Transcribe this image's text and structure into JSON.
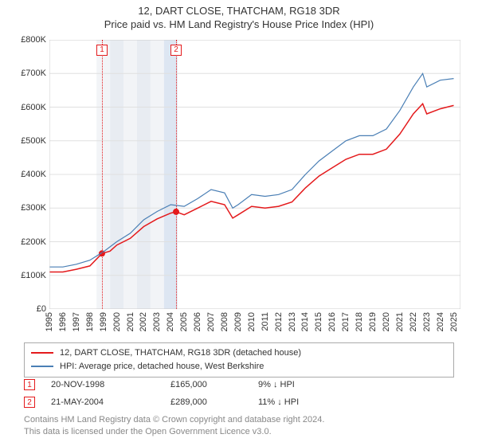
{
  "title": "12, DART CLOSE, THATCHAM, RG18 3DR",
  "subtitle": "Price paid vs. HM Land Registry's House Price Index (HPI)",
  "chart": {
    "type": "line",
    "background_color": "#ffffff",
    "grid_color": "#e0e0e0",
    "border_color": "#cccccc",
    "title_fontsize": 13,
    "label_fontsize": 11,
    "x": {
      "min": 1995,
      "max": 2025.5,
      "ticks": [
        1995,
        1996,
        1997,
        1998,
        1999,
        2000,
        2001,
        2002,
        2003,
        2004,
        2005,
        2006,
        2007,
        2008,
        2009,
        2010,
        2011,
        2012,
        2013,
        2014,
        2015,
        2016,
        2017,
        2018,
        2019,
        2020,
        2021,
        2022,
        2023,
        2024,
        2025
      ],
      "tick_rotation": -90
    },
    "y": {
      "min": 0,
      "max": 800000,
      "ticks": [
        0,
        100000,
        200000,
        300000,
        400000,
        500000,
        600000,
        700000,
        800000
      ],
      "tick_labels": [
        "£0",
        "£100K",
        "£200K",
        "£300K",
        "£400K",
        "£500K",
        "£600K",
        "£700K",
        "£800K"
      ]
    },
    "bands": [
      {
        "from": 1998.5,
        "color": "#f2f4f7"
      },
      {
        "from": 1999.5,
        "color": "#e8ecf2"
      },
      {
        "from": 2000.5,
        "color": "#f2f4f7"
      },
      {
        "from": 2001.5,
        "color": "#e8ecf2"
      },
      {
        "from": 2002.5,
        "color": "#f2f4f7"
      },
      {
        "from": 2003.5,
        "color": "#dde6f2"
      }
    ],
    "vlines": [
      {
        "x": 1998.9,
        "label": "1",
        "color": "#e41a1c"
      },
      {
        "x": 2004.4,
        "label": "2",
        "color": "#e41a1c"
      }
    ],
    "series": [
      {
        "name": "12, DART CLOSE, THATCHAM, RG18 3DR (detached house)",
        "color": "#e41a1c",
        "line_width": 1.5,
        "points": [
          [
            1995,
            110000
          ],
          [
            1996,
            110000
          ],
          [
            1997,
            118000
          ],
          [
            1998,
            128000
          ],
          [
            1998.9,
            165000
          ],
          [
            1999.5,
            172000
          ],
          [
            2000,
            190000
          ],
          [
            2001,
            210000
          ],
          [
            2002,
            245000
          ],
          [
            2003,
            268000
          ],
          [
            2004,
            285000
          ],
          [
            2004.4,
            289000
          ],
          [
            2005,
            280000
          ],
          [
            2006,
            300000
          ],
          [
            2007,
            320000
          ],
          [
            2008,
            310000
          ],
          [
            2008.6,
            270000
          ],
          [
            2009,
            280000
          ],
          [
            2010,
            305000
          ],
          [
            2011,
            300000
          ],
          [
            2012,
            305000
          ],
          [
            2013,
            318000
          ],
          [
            2014,
            360000
          ],
          [
            2015,
            395000
          ],
          [
            2016,
            420000
          ],
          [
            2017,
            445000
          ],
          [
            2018,
            460000
          ],
          [
            2019,
            460000
          ],
          [
            2020,
            475000
          ],
          [
            2021,
            520000
          ],
          [
            2022,
            580000
          ],
          [
            2022.7,
            610000
          ],
          [
            2023,
            580000
          ],
          [
            2024,
            595000
          ],
          [
            2025,
            605000
          ]
        ],
        "markers": [
          {
            "x": 1998.9,
            "y": 165000
          },
          {
            "x": 2004.4,
            "y": 289000
          }
        ],
        "marker_color": "#e41a1c",
        "marker_radius": 4
      },
      {
        "name": "HPI: Average price, detached house, West Berkshire",
        "color": "#4a7fb5",
        "line_width": 1.2,
        "points": [
          [
            1995,
            125000
          ],
          [
            1996,
            125000
          ],
          [
            1997,
            133000
          ],
          [
            1998,
            145000
          ],
          [
            1999,
            170000
          ],
          [
            2000,
            200000
          ],
          [
            2001,
            225000
          ],
          [
            2002,
            265000
          ],
          [
            2003,
            290000
          ],
          [
            2004,
            310000
          ],
          [
            2005,
            305000
          ],
          [
            2006,
            328000
          ],
          [
            2007,
            355000
          ],
          [
            2008,
            345000
          ],
          [
            2008.6,
            300000
          ],
          [
            2009,
            310000
          ],
          [
            2010,
            340000
          ],
          [
            2011,
            335000
          ],
          [
            2012,
            340000
          ],
          [
            2013,
            355000
          ],
          [
            2014,
            400000
          ],
          [
            2015,
            440000
          ],
          [
            2016,
            470000
          ],
          [
            2017,
            500000
          ],
          [
            2018,
            515000
          ],
          [
            2019,
            515000
          ],
          [
            2020,
            535000
          ],
          [
            2021,
            590000
          ],
          [
            2022,
            660000
          ],
          [
            2022.7,
            700000
          ],
          [
            2023,
            660000
          ],
          [
            2024,
            680000
          ],
          [
            2025,
            685000
          ]
        ]
      }
    ]
  },
  "legend": {
    "border_color": "#aaaaaa",
    "items": [
      {
        "color": "#e41a1c",
        "label": "12, DART CLOSE, THATCHAM, RG18 3DR (detached house)"
      },
      {
        "color": "#4a7fb5",
        "label": "HPI: Average price, detached house, West Berkshire"
      }
    ]
  },
  "marker_rows": [
    {
      "n": "1",
      "color": "#e41a1c",
      "date": "20-NOV-1998",
      "price": "£165,000",
      "hpi": "9% ↓ HPI"
    },
    {
      "n": "2",
      "color": "#e41a1c",
      "date": "21-MAY-2004",
      "price": "£289,000",
      "hpi": "11% ↓ HPI"
    }
  ],
  "footer": {
    "line1": "Contains HM Land Registry data © Crown copyright and database right 2024.",
    "line2": "This data is licensed under the Open Government Licence v3.0.",
    "color": "#888888"
  }
}
